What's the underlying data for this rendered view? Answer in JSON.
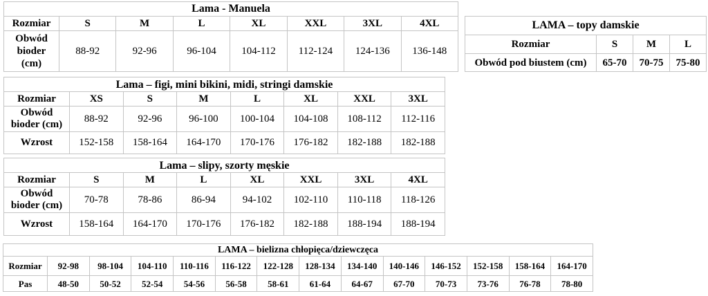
{
  "page": {
    "background_color": "#ffffff",
    "border_color": "#c4c4c4",
    "text_color": "#000000"
  },
  "tables": [
    {
      "id": "manuela",
      "title": "Lama - Manuela",
      "rows": [
        {
          "label_lines": [
            "Rozmiar"
          ],
          "values": [
            "S",
            "M",
            "L",
            "XL",
            "XXL",
            "3XL",
            "4XL"
          ],
          "values_bold": true
        },
        {
          "label_lines": [
            "Obwód",
            "bioder",
            "(cm)"
          ],
          "values": [
            "88-92",
            "92-96",
            "96-104",
            "104-112",
            "112-124",
            "124-136",
            "136-148"
          ],
          "values_bold": false
        }
      ]
    },
    {
      "id": "topy",
      "title": "LAMA – topy damskie",
      "rows": [
        {
          "label_lines": [
            "Rozmiar"
          ],
          "values": [
            "S",
            "M",
            "L"
          ],
          "values_bold": true
        },
        {
          "label_lines": [
            "Obwód pod biustem (cm)"
          ],
          "values": [
            "65-70",
            "70-75",
            "75-80"
          ],
          "values_bold": true
        }
      ]
    },
    {
      "id": "figi",
      "title": "Lama – figi, mini bikini, midi, stringi damskie",
      "rows": [
        {
          "label_lines": [
            "Rozmiar"
          ],
          "values": [
            "XS",
            "S",
            "M",
            "L",
            "XL",
            "XXL",
            "3XL"
          ],
          "values_bold": true
        },
        {
          "label_lines": [
            "Obwód",
            "bioder (cm)"
          ],
          "values": [
            "88-92",
            "92-96",
            "96-100",
            "100-104",
            "104-108",
            "108-112",
            "112-116"
          ],
          "values_bold": false
        },
        {
          "label_lines": [
            "Wzrost"
          ],
          "values": [
            "152-158",
            "158-164",
            "164-170",
            "170-176",
            "176-182",
            "182-188",
            "182-188"
          ],
          "values_bold": false
        }
      ]
    },
    {
      "id": "slipy",
      "title": "Lama – slipy, szorty męskie",
      "rows": [
        {
          "label_lines": [
            "Rozmiar"
          ],
          "values": [
            "S",
            "M",
            "L",
            "XL",
            "XXL",
            "3XL",
            "4XL"
          ],
          "values_bold": true
        },
        {
          "label_lines": [
            "Obwód",
            "bioder (cm)"
          ],
          "values": [
            "70-78",
            "78-86",
            "86-94",
            "94-102",
            "102-110",
            "110-118",
            "118-126"
          ],
          "values_bold": false
        },
        {
          "label_lines": [
            "Wzrost"
          ],
          "values": [
            "158-164",
            "164-170",
            "170-176",
            "176-182",
            "182-188",
            "188-194",
            "188-194"
          ],
          "values_bold": false
        }
      ]
    },
    {
      "id": "bielizna",
      "title": "LAMA – bielizna chłopięca/dziewczęca",
      "rows": [
        {
          "label_lines": [
            "Rozmiar"
          ],
          "values": [
            "92-98",
            "98-104",
            "104-110",
            "110-116",
            "116-122",
            "122-128",
            "128-134",
            "134-140",
            "140-146",
            "146-152",
            "152-158",
            "158-164",
            "164-170"
          ],
          "values_bold": true
        },
        {
          "label_lines": [
            "Pas"
          ],
          "values": [
            "48-50",
            "50-52",
            "52-54",
            "54-56",
            "56-58",
            "58-61",
            "61-64",
            "64-67",
            "67-70",
            "70-73",
            "73-76",
            "76-78",
            "78-80"
          ],
          "values_bold": true
        }
      ]
    }
  ]
}
